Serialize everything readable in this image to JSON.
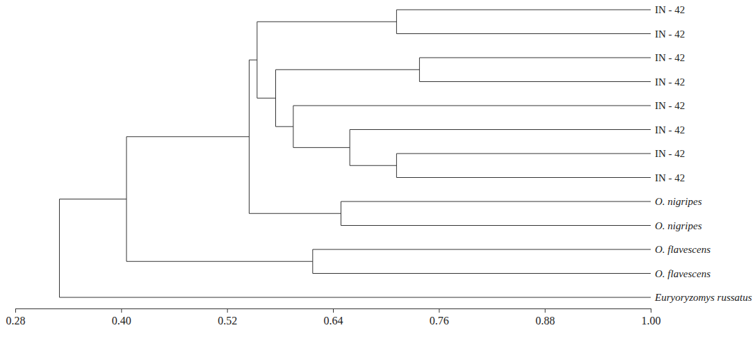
{
  "chart_data": {
    "type": "dendrogram",
    "xlim": [
      0.28,
      1
    ],
    "xticks": [
      0.28,
      {
        "value": 0.4,
        "label": "0.40"
      },
      0.52,
      0.64,
      0.76,
      0.88,
      {
        "value": 1,
        "label": "1.00"
      }
    ],
    "tree": {
      "height": 0.33,
      "children": [
        {
          "height": 0.406,
          "children": [
            {
              "height": 0.545,
              "children": [
                {
                  "height": 0.554,
                  "children": [
                    {
                      "height": 0.712,
                      "children": [
                        {
                          "label": "IN - 42",
                          "height": 1
                        },
                        {
                          "label": "IN - 42",
                          "height": 1
                        }
                      ]
                    },
                    {
                      "height": 0.575,
                      "children": [
                        {
                          "height": 0.738,
                          "children": [
                            {
                              "label": "IN - 42",
                              "height": 1
                            },
                            {
                              "label": "IN - 42",
                              "height": 1
                            }
                          ]
                        },
                        {
                          "height": 0.595,
                          "children": [
                            {
                              "label": "IN - 42",
                              "height": 1
                            },
                            {
                              "height": 0.659,
                              "children": [
                                {
                                  "label": "IN - 42",
                                  "height": 1
                                },
                                {
                                  "height": 0.712,
                                  "children": [
                                    {
                                      "label": "IN - 42",
                                      "height": 1
                                    },
                                    {
                                      "label": "IN - 42",
                                      "height": 1
                                    }
                                  ]
                                }
                              ]
                            }
                          ]
                        }
                      ]
                    }
                  ]
                },
                {
                  "height": 0.649,
                  "children": [
                    {
                      "label": "O. nigripes",
                      "height": 1
                    },
                    {
                      "label": "O. nigripes",
                      "height": 1
                    }
                  ]
                }
              ]
            },
            {
              "height": 0.617,
              "children": [
                {
                  "label": "O. flavescens",
                  "height": 1
                },
                {
                  "label": "O. flavescens",
                  "height": 1
                }
              ]
            }
          ]
        },
        {
          "label": "Euryoryzomys russatus",
          "height": 1
        }
      ]
    }
  }
}
